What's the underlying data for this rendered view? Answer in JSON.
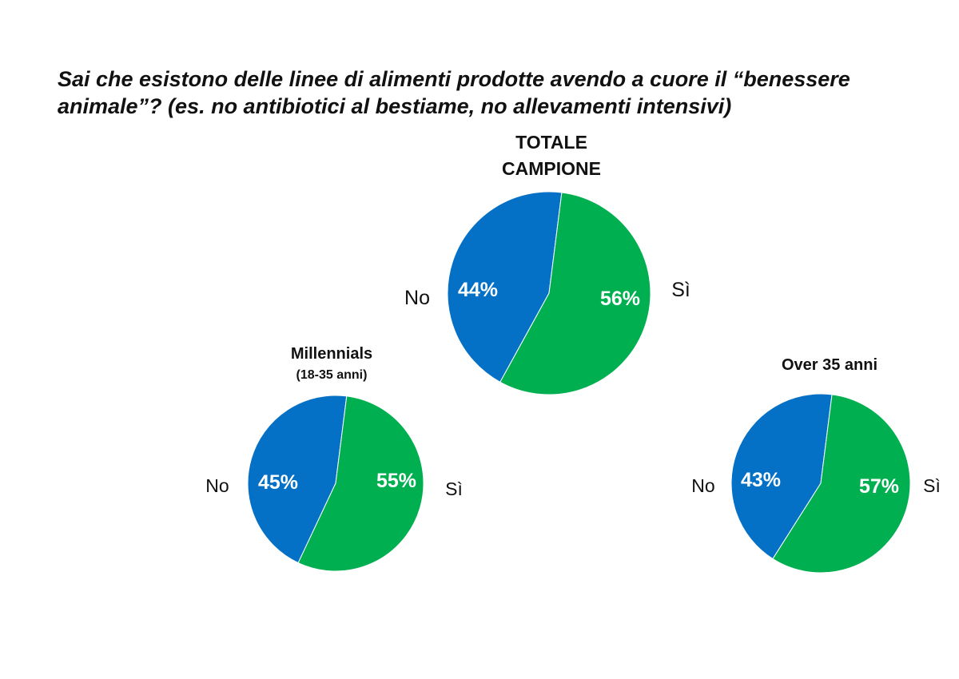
{
  "title": {
    "line1": "Sai che esistono delle linee di alimenti prodotte avendo a cuore il “benessere",
    "line2": "animale”? (es. no antibiotici al bestiame, no allevamenti intensivi)"
  },
  "colors": {
    "no": "#0571c6",
    "si": "#00b050"
  },
  "chart_data": [
    {
      "type": "pie",
      "id": "totale",
      "title_lines": [
        "TOTALE",
        "CAMPIONE"
      ],
      "slices": [
        {
          "label": "No",
          "value": 44,
          "value_label": "44%"
        },
        {
          "label": "Sì",
          "value": 56,
          "value_label": "56%"
        }
      ]
    },
    {
      "type": "pie",
      "id": "millennials",
      "title_lines": [
        "Millennials",
        "(18-35 anni)"
      ],
      "slices": [
        {
          "label": "No",
          "value": 45,
          "value_label": "45%"
        },
        {
          "label": "Sì",
          "value": 55,
          "value_label": "55%"
        }
      ]
    },
    {
      "type": "pie",
      "id": "over35",
      "title_lines": [
        "Over 35 anni"
      ],
      "slices": [
        {
          "label": "No",
          "value": 43,
          "value_label": "43%"
        },
        {
          "label": "Sì",
          "value": 57,
          "value_label": "57%"
        }
      ]
    }
  ]
}
